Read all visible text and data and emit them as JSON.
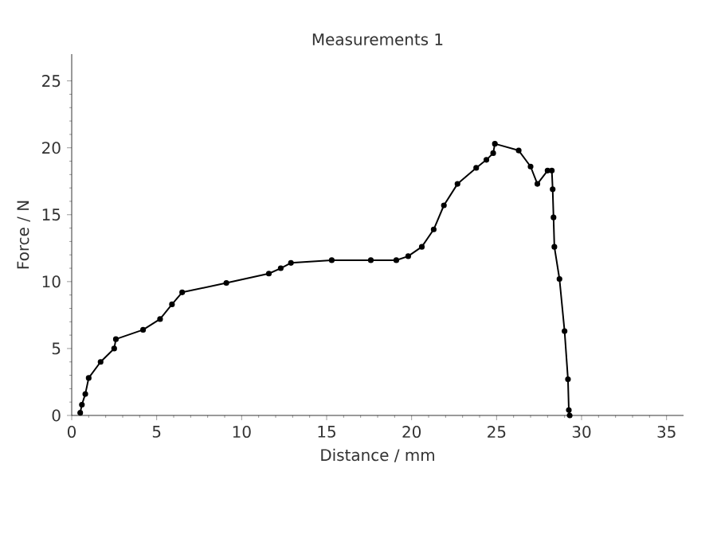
{
  "chart_data": {
    "type": "line",
    "title": "Measurements 1",
    "xlabel": "Distance / mm",
    "ylabel": "Force / N",
    "xlim": [
      0,
      36
    ],
    "ylim": [
      0,
      27
    ],
    "xticks": [
      0,
      5,
      10,
      15,
      20,
      25,
      30,
      35
    ],
    "yticks": [
      0,
      5,
      10,
      15,
      20,
      25
    ],
    "marker": "circle",
    "line_style": "solid",
    "grid": false,
    "series": [
      {
        "color": "#000000",
        "x": [
          0.5,
          0.6,
          0.8,
          1.0,
          1.7,
          2.5,
          2.6,
          4.2,
          5.2,
          5.9,
          6.5,
          9.1,
          11.6,
          12.3,
          12.9,
          15.3,
          17.6,
          19.1,
          19.8,
          20.6,
          21.3,
          21.9,
          22.7,
          23.8,
          24.4,
          24.8,
          24.9,
          26.3,
          27.0,
          27.4,
          28.0,
          28.25,
          28.3,
          28.35,
          28.4,
          28.7,
          29.0,
          29.2,
          29.25,
          29.3
        ],
        "values": [
          0.2,
          0.8,
          1.6,
          2.8,
          4.0,
          5.0,
          5.7,
          6.4,
          7.2,
          8.3,
          9.2,
          9.9,
          10.6,
          11.0,
          11.4,
          11.6,
          11.6,
          11.6,
          11.9,
          12.6,
          13.9,
          15.7,
          17.3,
          18.5,
          19.1,
          19.6,
          20.3,
          19.8,
          18.6,
          17.3,
          18.3,
          18.3,
          16.9,
          14.8,
          12.6,
          10.2,
          6.3,
          2.7,
          0.4,
          0.0
        ]
      }
    ]
  }
}
